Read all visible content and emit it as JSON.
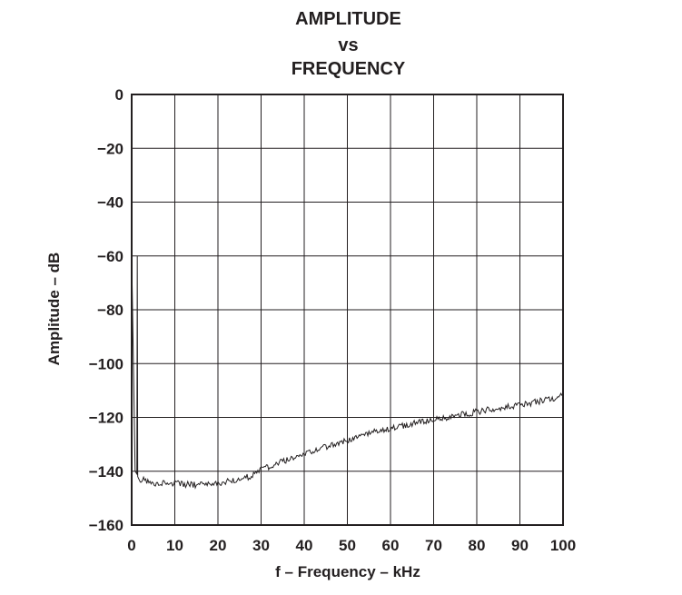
{
  "chart_data": {
    "type": "line",
    "title": [
      "AMPLITUDE",
      "vs",
      "FREQUENCY"
    ],
    "xlabel": "f – Frequency – kHz",
    "ylabel": "Amplitude – dB",
    "xlim": [
      0,
      100
    ],
    "ylim": [
      -160,
      0
    ],
    "x_ticks": [
      0,
      10,
      20,
      30,
      40,
      50,
      60,
      70,
      80,
      90,
      100
    ],
    "y_ticks": [
      0,
      -20,
      -40,
      -60,
      -80,
      -100,
      -120,
      -140,
      -160
    ],
    "x_tick_labels": [
      "0",
      "10",
      "20",
      "30",
      "40",
      "50",
      "60",
      "70",
      "80",
      "90",
      "100"
    ],
    "y_tick_labels": [
      "0",
      "−20",
      "−40",
      "−60",
      "−80",
      "−100",
      "−120",
      "−140",
      "−160"
    ],
    "grid": true,
    "line_color": "#231f20",
    "series": [
      {
        "points": [
          [
            0,
            -60
          ],
          [
            0.4,
            -100
          ],
          [
            0.8,
            -140
          ],
          [
            1.2,
            -141
          ],
          [
            1.3,
            -60
          ],
          [
            1.4,
            -142
          ],
          [
            2,
            -143
          ],
          [
            4,
            -144
          ],
          [
            6,
            -144.5
          ],
          [
            8,
            -144.5
          ],
          [
            10,
            -144.5
          ],
          [
            12,
            -145
          ],
          [
            15,
            -145
          ],
          [
            18,
            -145
          ],
          [
            20,
            -144.5
          ],
          [
            22,
            -144
          ],
          [
            25,
            -143
          ],
          [
            28,
            -141.5
          ],
          [
            30,
            -139.5
          ],
          [
            33,
            -137.5
          ],
          [
            36,
            -136
          ],
          [
            40,
            -134
          ],
          [
            43,
            -132
          ],
          [
            46,
            -130.5
          ],
          [
            50,
            -128.5
          ],
          [
            53,
            -127
          ],
          [
            56,
            -125.5
          ],
          [
            60,
            -124
          ],
          [
            63,
            -123
          ],
          [
            66,
            -122
          ],
          [
            70,
            -121
          ],
          [
            73,
            -120
          ],
          [
            76,
            -119
          ],
          [
            80,
            -118
          ],
          [
            83,
            -117
          ],
          [
            86,
            -116.5
          ],
          [
            90,
            -115.5
          ],
          [
            93,
            -114.5
          ],
          [
            96,
            -113.5
          ],
          [
            100,
            -112
          ]
        ]
      }
    ]
  }
}
